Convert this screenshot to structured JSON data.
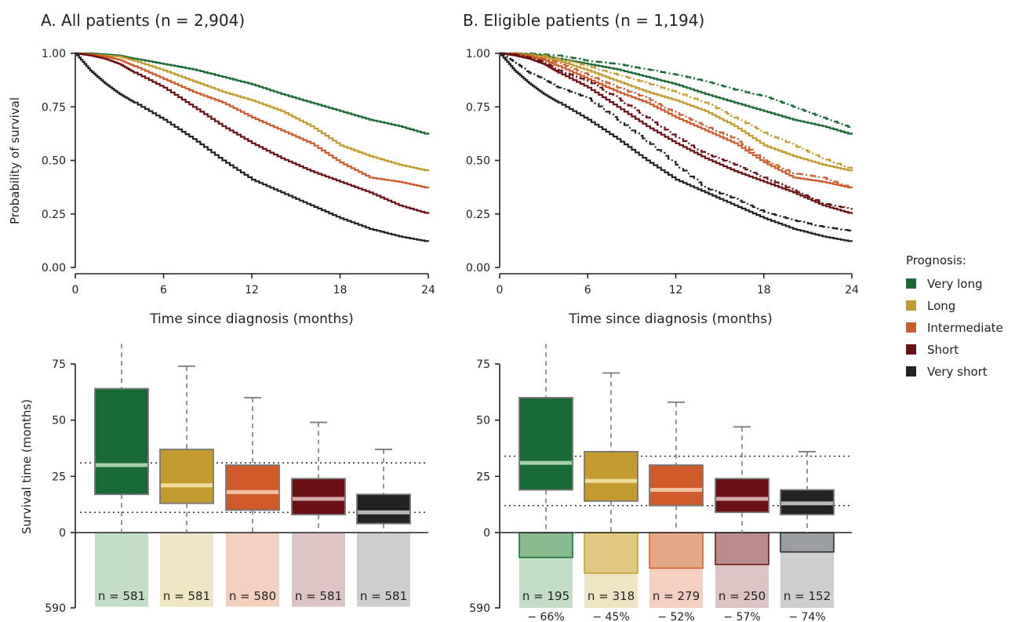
{
  "legend": {
    "title": "Prognosis:",
    "items": [
      {
        "label": "Very long",
        "color": "#186a34"
      },
      {
        "label": "Long",
        "color": "#c39a2e"
      },
      {
        "label": "Intermediate",
        "color": "#cf5a2a"
      },
      {
        "label": "Short",
        "color": "#6a0f12"
      },
      {
        "label": "Very short",
        "color": "#222222"
      }
    ]
  },
  "chart_data": [
    {
      "type": "line",
      "title": "A. All patients (n = 2,904)",
      "xlabel": "Time since diagnosis (months)",
      "ylabel": "Probability of survival",
      "xlim": [
        0,
        24
      ],
      "ylim": [
        0,
        1
      ],
      "xticks": [
        "0",
        "6",
        "12",
        "18",
        "24"
      ],
      "yticks": [
        "0.00",
        "0.25",
        "0.50",
        "0.75",
        "1.00"
      ],
      "x": [
        0,
        1,
        2,
        3,
        4,
        6,
        8,
        10,
        12,
        14,
        16,
        18,
        20,
        22,
        24
      ],
      "series": [
        {
          "name": "Very long",
          "line_style": "solid",
          "values": [
            1.0,
            1.0,
            0.995,
            0.99,
            0.975,
            0.95,
            0.925,
            0.89,
            0.855,
            0.81,
            0.77,
            0.73,
            0.69,
            0.66,
            0.62
          ]
        },
        {
          "name": "Long",
          "line_style": "solid",
          "values": [
            1.0,
            0.995,
            0.99,
            0.985,
            0.965,
            0.92,
            0.87,
            0.82,
            0.78,
            0.73,
            0.66,
            0.57,
            0.52,
            0.48,
            0.45
          ]
        },
        {
          "name": "Intermediate",
          "line_style": "solid",
          "values": [
            1.0,
            0.995,
            0.985,
            0.97,
            0.94,
            0.88,
            0.82,
            0.77,
            0.7,
            0.64,
            0.58,
            0.49,
            0.42,
            0.4,
            0.37
          ]
        },
        {
          "name": "Short",
          "line_style": "solid",
          "values": [
            1.0,
            0.99,
            0.975,
            0.95,
            0.91,
            0.84,
            0.75,
            0.66,
            0.58,
            0.51,
            0.45,
            0.4,
            0.35,
            0.29,
            0.25
          ]
        },
        {
          "name": "Very short",
          "line_style": "solid",
          "values": [
            1.0,
            0.92,
            0.86,
            0.81,
            0.77,
            0.69,
            0.6,
            0.5,
            0.41,
            0.35,
            0.29,
            0.23,
            0.18,
            0.145,
            0.12
          ]
        }
      ]
    },
    {
      "type": "line",
      "title": "B. Eligible patients (n = 1,194)",
      "xlabel": "Time since diagnosis (months)",
      "ylabel": "",
      "xlim": [
        0,
        24
      ],
      "ylim": [
        0,
        1
      ],
      "xticks": [
        "0",
        "6",
        "12",
        "18",
        "24"
      ],
      "yticks": [
        "0.00",
        "0.25",
        "0.50",
        "0.75",
        "1.00"
      ],
      "x": [
        0,
        1,
        2,
        3,
        4,
        6,
        8,
        10,
        12,
        14,
        16,
        18,
        20,
        22,
        24
      ],
      "series": [
        {
          "name": "Very long",
          "line_style": "solid",
          "values": [
            1.0,
            1.0,
            0.995,
            0.99,
            0.975,
            0.95,
            0.925,
            0.89,
            0.855,
            0.81,
            0.77,
            0.73,
            0.69,
            0.66,
            0.62
          ]
        },
        {
          "name": "Long",
          "line_style": "solid",
          "values": [
            1.0,
            0.995,
            0.99,
            0.985,
            0.965,
            0.92,
            0.87,
            0.82,
            0.78,
            0.73,
            0.66,
            0.57,
            0.52,
            0.48,
            0.45
          ]
        },
        {
          "name": "Intermediate",
          "line_style": "solid",
          "values": [
            1.0,
            0.995,
            0.985,
            0.97,
            0.94,
            0.88,
            0.82,
            0.77,
            0.7,
            0.64,
            0.58,
            0.49,
            0.42,
            0.4,
            0.37
          ]
        },
        {
          "name": "Short",
          "line_style": "solid",
          "values": [
            1.0,
            0.99,
            0.975,
            0.95,
            0.91,
            0.84,
            0.75,
            0.66,
            0.58,
            0.51,
            0.45,
            0.4,
            0.35,
            0.29,
            0.25
          ]
        },
        {
          "name": "Very short",
          "line_style": "solid",
          "values": [
            1.0,
            0.92,
            0.86,
            0.81,
            0.77,
            0.69,
            0.6,
            0.5,
            0.41,
            0.35,
            0.29,
            0.23,
            0.18,
            0.145,
            0.12
          ]
        },
        {
          "name": "Very long",
          "line_style": "dashdot",
          "values": [
            1.0,
            1.0,
            1.0,
            0.995,
            0.99,
            0.965,
            0.95,
            0.925,
            0.9,
            0.87,
            0.83,
            0.8,
            0.75,
            0.7,
            0.65
          ]
        },
        {
          "name": "Long",
          "line_style": "dashdot",
          "values": [
            1.0,
            1.0,
            0.995,
            0.99,
            0.975,
            0.94,
            0.9,
            0.86,
            0.82,
            0.77,
            0.7,
            0.63,
            0.57,
            0.51,
            0.46
          ]
        },
        {
          "name": "Intermediate",
          "line_style": "dashdot",
          "values": [
            1.0,
            1.0,
            0.99,
            0.975,
            0.955,
            0.9,
            0.84,
            0.79,
            0.72,
            0.66,
            0.6,
            0.5,
            0.44,
            0.42,
            0.37
          ]
        },
        {
          "name": "Short",
          "line_style": "dashdot",
          "values": [
            1.0,
            0.995,
            0.98,
            0.96,
            0.92,
            0.87,
            0.79,
            0.7,
            0.61,
            0.53,
            0.48,
            0.42,
            0.36,
            0.3,
            0.27
          ]
        },
        {
          "name": "Very short",
          "line_style": "dashdot",
          "values": [
            1.0,
            0.96,
            0.91,
            0.88,
            0.84,
            0.79,
            0.69,
            0.59,
            0.48,
            0.37,
            0.32,
            0.26,
            0.22,
            0.19,
            0.17
          ]
        }
      ]
    },
    {
      "type": "box",
      "ylabel": "Survival time (months)",
      "yticks": [
        "0",
        "25",
        "50",
        "75"
      ],
      "ylim": [
        0,
        75
      ],
      "ref_lines": [
        31,
        9
      ],
      "count_axis": {
        "tick": "590",
        "max": 590
      },
      "boxes": [
        {
          "name": "Very long",
          "q1": 17,
          "median": 30,
          "q3": 64,
          "lower_whisker": 0,
          "upper_whisker": 84,
          "has_cap": false,
          "n_label": "n = 581",
          "n": 581
        },
        {
          "name": "Long",
          "q1": 13,
          "median": 21,
          "q3": 37,
          "lower_whisker": 0,
          "upper_whisker": 74,
          "has_cap": true,
          "n_label": "n = 581",
          "n": 581
        },
        {
          "name": "Intermediate",
          "q1": 10,
          "median": 18,
          "q3": 30,
          "lower_whisker": 0,
          "upper_whisker": 60,
          "has_cap": true,
          "n_label": "n = 580",
          "n": 580
        },
        {
          "name": "Short",
          "q1": 8,
          "median": 15,
          "q3": 24,
          "lower_whisker": 0,
          "upper_whisker": 49,
          "has_cap": true,
          "n_label": "n = 581",
          "n": 581
        },
        {
          "name": "Very short",
          "q1": 4,
          "median": 9,
          "q3": 17,
          "lower_whisker": 0,
          "upper_whisker": 37,
          "has_cap": true,
          "n_label": "n = 581",
          "n": 581
        }
      ]
    },
    {
      "type": "box",
      "ylabel": "",
      "yticks": [
        "0",
        "25",
        "50",
        "75"
      ],
      "ylim": [
        0,
        75
      ],
      "ref_lines": [
        34,
        12
      ],
      "count_axis": {
        "tick": "590",
        "max": 590
      },
      "boxes": [
        {
          "name": "Very long",
          "q1": 19,
          "median": 31,
          "q3": 60,
          "lower_whisker": 0,
          "upper_whisker": 84,
          "has_cap": false,
          "n_label": "n = 195",
          "n": 195,
          "pct_label": "− 66%"
        },
        {
          "name": "Long",
          "q1": 14,
          "median": 23,
          "q3": 36,
          "lower_whisker": 0,
          "upper_whisker": 71,
          "has_cap": true,
          "n_label": "n = 318",
          "n": 318,
          "pct_label": "− 45%"
        },
        {
          "name": "Intermediate",
          "q1": 12,
          "median": 19,
          "q3": 30,
          "lower_whisker": 0,
          "upper_whisker": 58,
          "has_cap": true,
          "n_label": "n = 279",
          "n": 279,
          "pct_label": "− 52%"
        },
        {
          "name": "Short",
          "q1": 9,
          "median": 15,
          "q3": 24,
          "lower_whisker": 0,
          "upper_whisker": 47,
          "has_cap": true,
          "n_label": "n = 250",
          "n": 250,
          "pct_label": "− 57%"
        },
        {
          "name": "Very short",
          "q1": 8,
          "median": 13,
          "q3": 19,
          "lower_whisker": 0,
          "upper_whisker": 36,
          "has_cap": true,
          "n_label": "n = 152",
          "n": 152,
          "pct_label": "− 74%"
        }
      ]
    }
  ]
}
